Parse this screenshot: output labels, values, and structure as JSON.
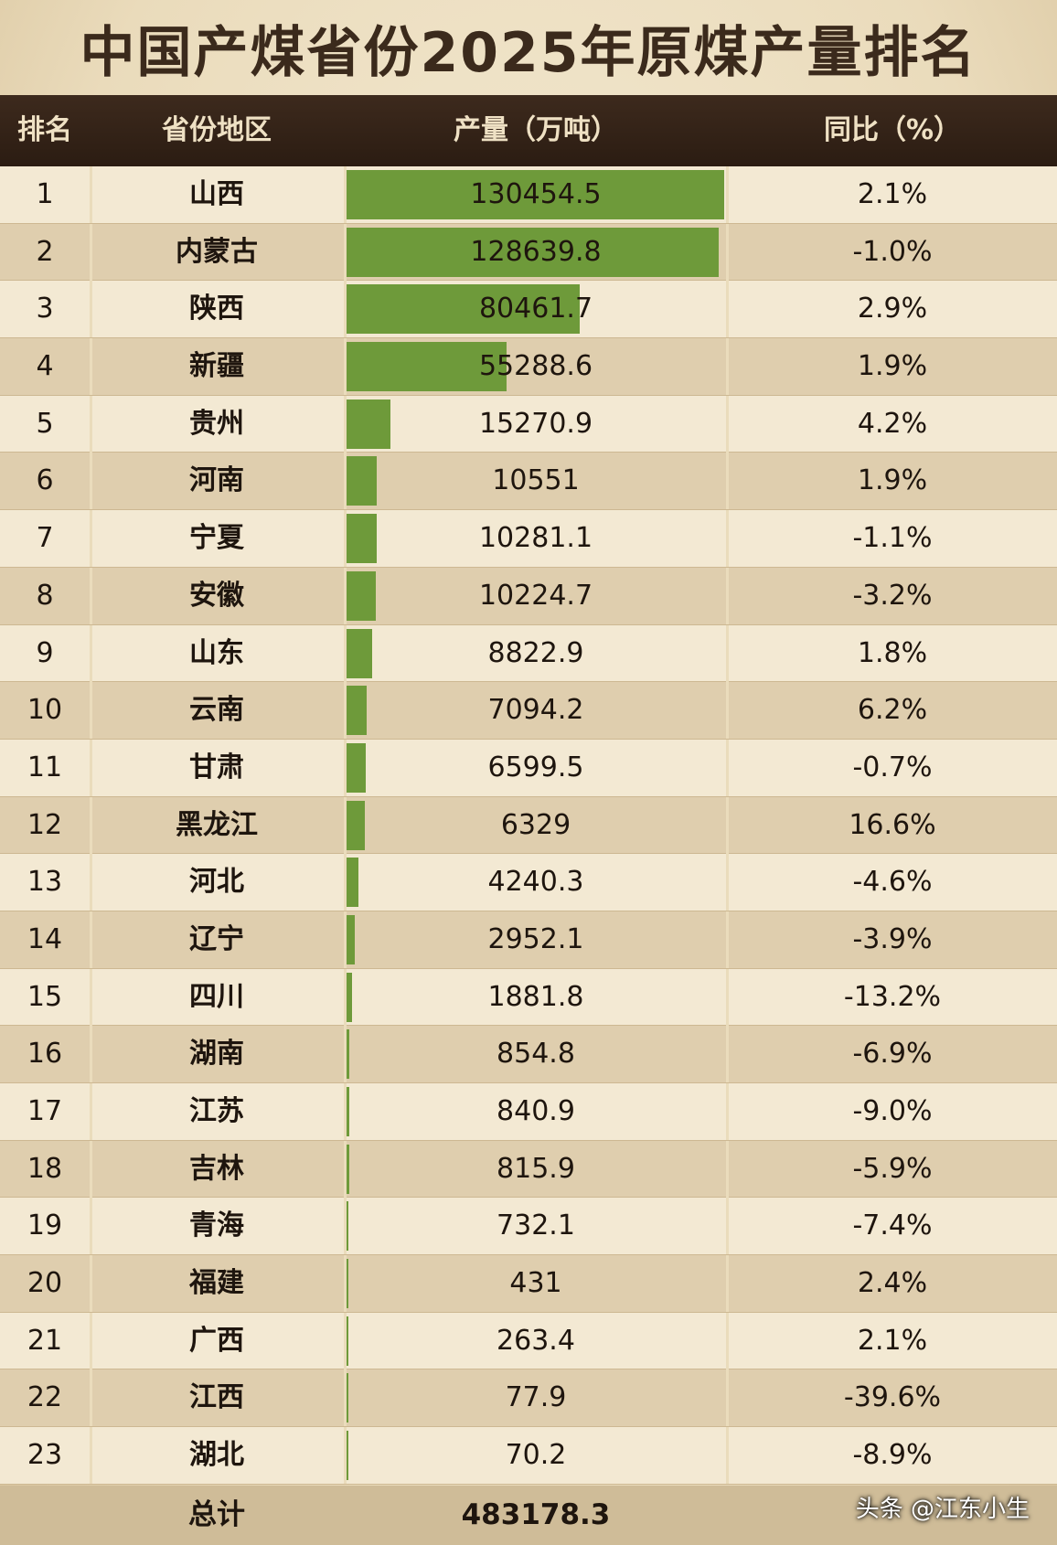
{
  "title": "中国产煤省份2025年原煤产量排名",
  "header": {
    "rank": "排名",
    "province": "省份地区",
    "production": "产量（万吨）",
    "yoy": "同比（%）"
  },
  "colors": {
    "bar": "#6e9a3a",
    "header_bg": "#2f2016"
  },
  "chart_data": {
    "type": "table",
    "title": "中国产煤省份2025年原煤产量排名",
    "columns": [
      "排名",
      "省份地区",
      "产量（万吨）",
      "同比（%）"
    ],
    "bar_column": "产量（万吨）",
    "bar_max": 130454.5,
    "rows": [
      {
        "rank": "1",
        "province": "山西",
        "production": "130454.5",
        "value": 130454.5,
        "yoy": "2.1%"
      },
      {
        "rank": "2",
        "province": "内蒙古",
        "production": "128639.8",
        "value": 128639.8,
        "yoy": "-1.0%"
      },
      {
        "rank": "3",
        "province": "陕西",
        "production": "80461.7",
        "value": 80461.7,
        "yoy": "2.9%"
      },
      {
        "rank": "4",
        "province": "新疆",
        "production": "55288.6",
        "value": 55288.6,
        "yoy": "1.9%"
      },
      {
        "rank": "5",
        "province": "贵州",
        "production": "15270.9",
        "value": 15270.9,
        "yoy": "4.2%"
      },
      {
        "rank": "6",
        "province": "河南",
        "production": "10551",
        "value": 10551,
        "yoy": "1.9%"
      },
      {
        "rank": "7",
        "province": "宁夏",
        "production": "10281.1",
        "value": 10281.1,
        "yoy": "-1.1%"
      },
      {
        "rank": "8",
        "province": "安徽",
        "production": "10224.7",
        "value": 10224.7,
        "yoy": "-3.2%"
      },
      {
        "rank": "9",
        "province": "山东",
        "production": "8822.9",
        "value": 8822.9,
        "yoy": "1.8%"
      },
      {
        "rank": "10",
        "province": "云南",
        "production": "7094.2",
        "value": 7094.2,
        "yoy": "6.2%"
      },
      {
        "rank": "11",
        "province": "甘肃",
        "production": "6599.5",
        "value": 6599.5,
        "yoy": "-0.7%"
      },
      {
        "rank": "12",
        "province": "黑龙江",
        "production": "6329",
        "value": 6329,
        "yoy": "16.6%"
      },
      {
        "rank": "13",
        "province": "河北",
        "production": "4240.3",
        "value": 4240.3,
        "yoy": "-4.6%"
      },
      {
        "rank": "14",
        "province": "辽宁",
        "production": "2952.1",
        "value": 2952.1,
        "yoy": "-3.9%"
      },
      {
        "rank": "15",
        "province": "四川",
        "production": "1881.8",
        "value": 1881.8,
        "yoy": "-13.2%"
      },
      {
        "rank": "16",
        "province": "湖南",
        "production": "854.8",
        "value": 854.8,
        "yoy": "-6.9%"
      },
      {
        "rank": "17",
        "province": "江苏",
        "production": "840.9",
        "value": 840.9,
        "yoy": "-9.0%"
      },
      {
        "rank": "18",
        "province": "吉林",
        "production": "815.9",
        "value": 815.9,
        "yoy": "-5.9%"
      },
      {
        "rank": "19",
        "province": "青海",
        "production": "732.1",
        "value": 732.1,
        "yoy": "-7.4%"
      },
      {
        "rank": "20",
        "province": "福建",
        "production": "431",
        "value": 431,
        "yoy": "2.4%"
      },
      {
        "rank": "21",
        "province": "广西",
        "production": "263.4",
        "value": 263.4,
        "yoy": "2.1%"
      },
      {
        "rank": "22",
        "province": "江西",
        "production": "77.9",
        "value": 77.9,
        "yoy": "-39.6%"
      },
      {
        "rank": "23",
        "province": "湖北",
        "production": "70.2",
        "value": 70.2,
        "yoy": "-8.9%"
      }
    ],
    "total": {
      "label": "总计",
      "production": "483178.3"
    }
  },
  "watermark": "头条 @江东小生"
}
